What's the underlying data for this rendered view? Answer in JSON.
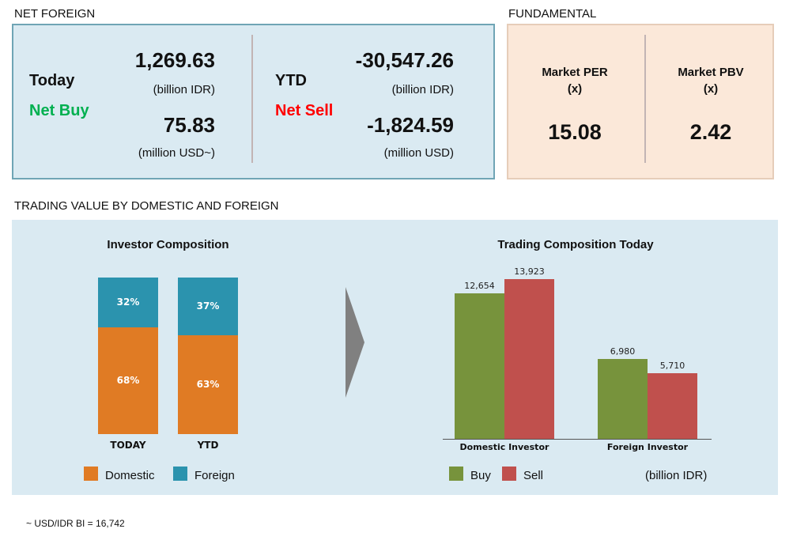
{
  "net_foreign": {
    "section_title": "NET FOREIGN",
    "today": {
      "label": "Today",
      "status": "Net Buy",
      "idr_value": "1,269.63",
      "idr_unit": "(billion IDR)",
      "usd_value": "75.83",
      "usd_unit": "(million USD~)"
    },
    "ytd": {
      "label": "YTD",
      "status": "Net Sell",
      "idr_value": "-30,547.26",
      "idr_unit": "(billion IDR)",
      "usd_value": "-1,824.59",
      "usd_unit": "(million USD)"
    }
  },
  "fundamental": {
    "section_title": "FUNDAMENTAL",
    "per": {
      "label": "Market PER",
      "unit": "(x)",
      "value": "15.08"
    },
    "pbv": {
      "label": "Market PBV",
      "unit": "(x)",
      "value": "2.42"
    }
  },
  "trading": {
    "section_title": "TRADING VALUE BY DOMESTIC AND FOREIGN"
  },
  "colors": {
    "buy": "#00b050",
    "sell": "#ff0000",
    "domestic": "#e07b24",
    "foreign": "#2b93ae",
    "bar_buy": "#77933c",
    "bar_sell": "#c0504d"
  },
  "chart_data": [
    {
      "type": "bar",
      "stacked": true,
      "title": "Investor Composition",
      "categories": [
        "TODAY",
        "YTD"
      ],
      "series": [
        {
          "name": "Domestic",
          "values": [
            68,
            63
          ],
          "labels": [
            "68%",
            "63%"
          ]
        },
        {
          "name": "Foreign",
          "values": [
            32,
            37
          ],
          "labels": [
            "32%",
            "37%"
          ]
        }
      ],
      "ylim": [
        0,
        100
      ],
      "legend": "bottom"
    },
    {
      "type": "bar",
      "title": "Trading Composition Today",
      "categories": [
        "Domestic Investor",
        "Foreign Investor"
      ],
      "series": [
        {
          "name": "Buy",
          "values": [
            12654,
            6980
          ],
          "labels": [
            "12,654",
            "6,980"
          ]
        },
        {
          "name": "Sell",
          "values": [
            13923,
            5710
          ],
          "labels": [
            "13,923",
            "5,710"
          ]
        }
      ],
      "unit_note": "(billion IDR)",
      "ylim": [
        0,
        13923
      ],
      "legend": "bottom"
    }
  ],
  "footnote": "~ USD/IDR BI = 16,742"
}
